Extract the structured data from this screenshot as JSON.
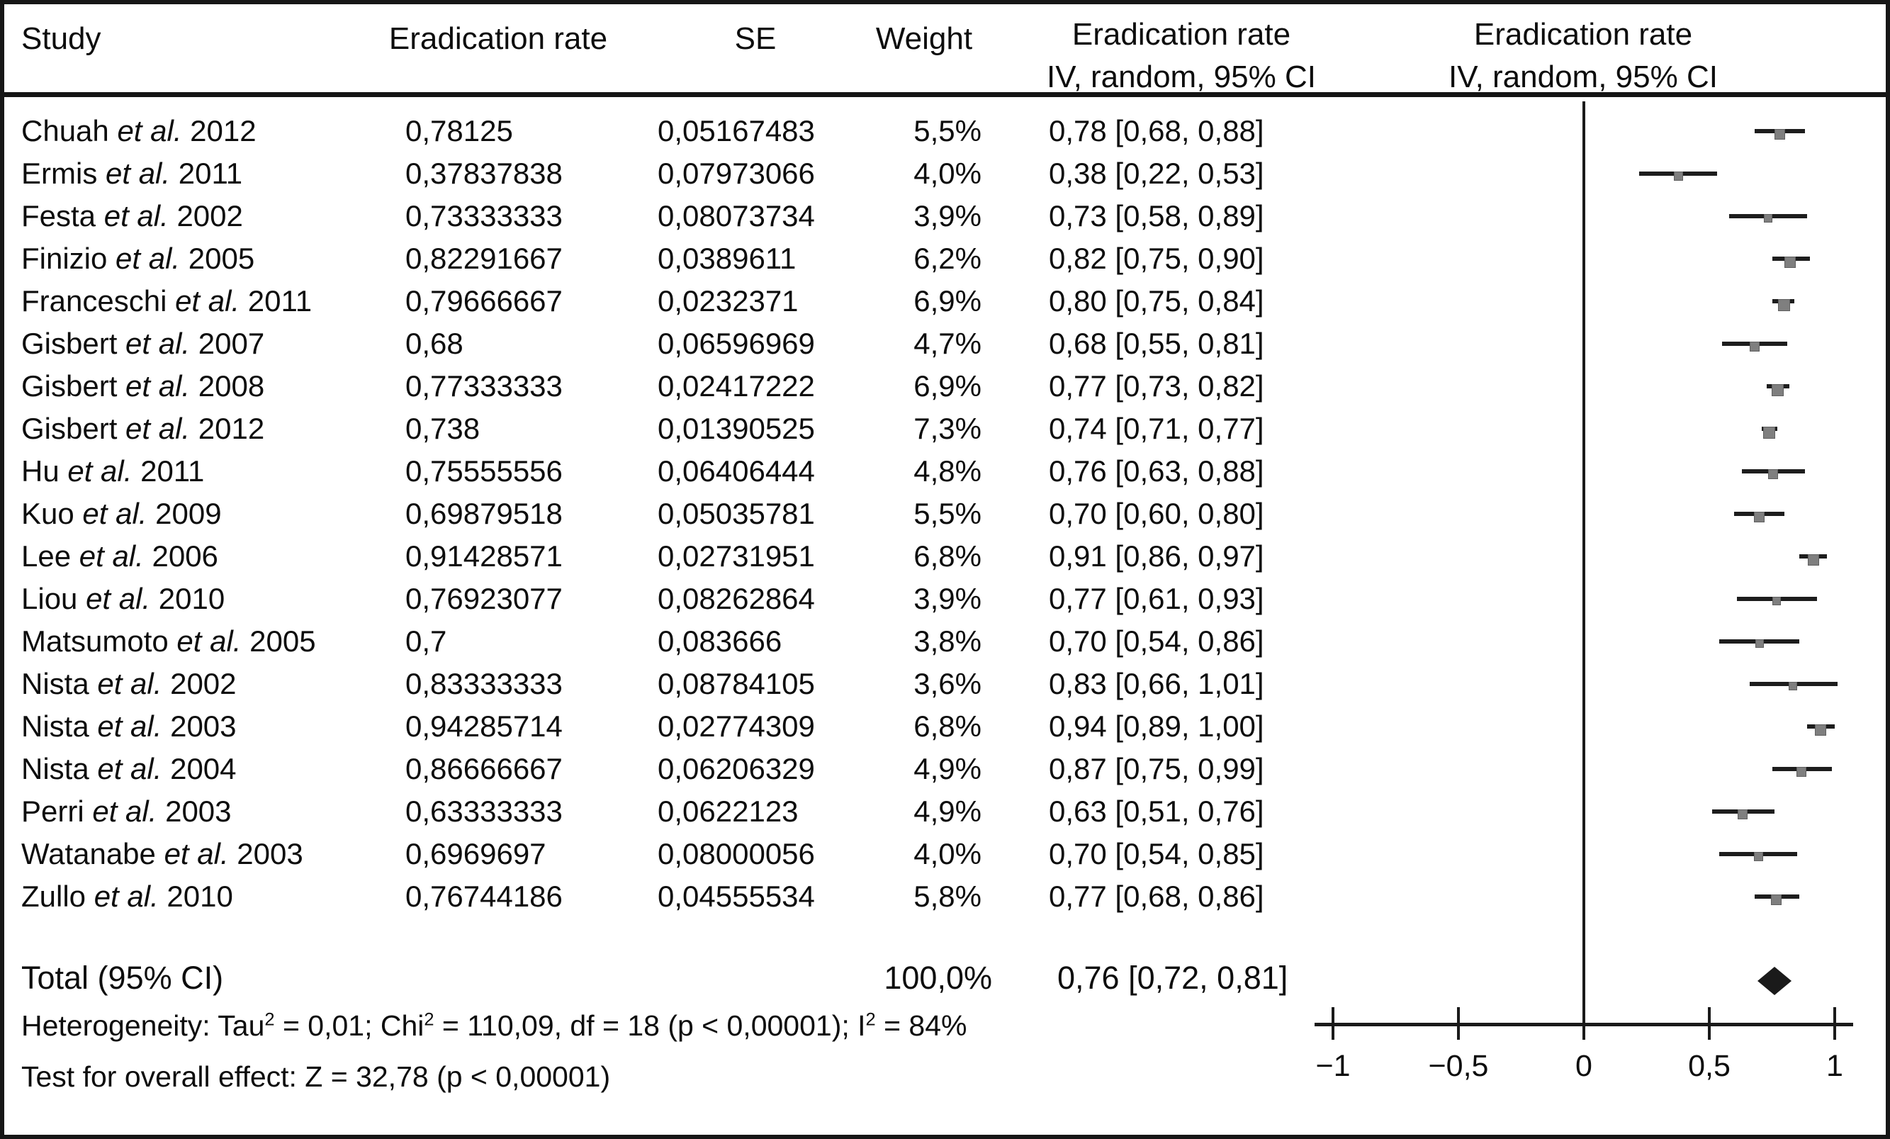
{
  "header": {
    "study": "Study",
    "rate": "Eradication rate",
    "se": "SE",
    "weight": "Weight",
    "ci_rate": "Eradication rate",
    "ci_model": "IV, random, 95% CI",
    "plot_rate": "Eradication rate",
    "plot_model": "IV, random, 95% CI"
  },
  "studies": [
    {
      "author": "Chuah",
      "etal": "et al.",
      "year": "2012",
      "rate": "0,78125",
      "se": "0,05167483",
      "weight": "5,5%",
      "ci": "0,78 [0,68, 0,88]",
      "est": 0.78125,
      "lo": 0.68,
      "hi": 0.88,
      "weight_pct": 5.5
    },
    {
      "author": "Ermis",
      "etal": "et al.",
      "year": "2011",
      "rate": "0,37837838",
      "se": "0,07973066",
      "weight": "4,0%",
      "ci": "0,38 [0,22, 0,53]",
      "est": 0.37837838,
      "lo": 0.22,
      "hi": 0.53,
      "weight_pct": 4.0
    },
    {
      "author": "Festa",
      "etal": "et al.",
      "year": "2002",
      "rate": "0,73333333",
      "se": "0,08073734",
      "weight": "3,9%",
      "ci": "0,73 [0,58, 0,89]",
      "est": 0.73333333,
      "lo": 0.58,
      "hi": 0.89,
      "weight_pct": 3.9
    },
    {
      "author": "Finizio",
      "etal": "et al.",
      "year": "2005",
      "rate": "0,82291667",
      "se": "0,0389611",
      "weight": "6,2%",
      "ci": "0,82 [0,75, 0,90]",
      "est": 0.82291667,
      "lo": 0.75,
      "hi": 0.9,
      "weight_pct": 6.2
    },
    {
      "author": "Franceschi",
      "etal": "et al.",
      "year": "2011",
      "rate": "0,79666667",
      "se": "0,0232371",
      "weight": "6,9%",
      "ci": "0,80 [0,75, 0,84]",
      "est": 0.79666667,
      "lo": 0.75,
      "hi": 0.84,
      "weight_pct": 6.9
    },
    {
      "author": "Gisbert",
      "etal": "et al.",
      "year": "2007",
      "rate": "0,68",
      "se": "0,06596969",
      "weight": "4,7%",
      "ci": "0,68 [0,55, 0,81]",
      "est": 0.68,
      "lo": 0.55,
      "hi": 0.81,
      "weight_pct": 4.7
    },
    {
      "author": "Gisbert",
      "etal": "et al.",
      "year": "2008",
      "rate": "0,77333333",
      "se": "0,02417222",
      "weight": "6,9%",
      "ci": "0,77 [0,73, 0,82]",
      "est": 0.77333333,
      "lo": 0.73,
      "hi": 0.82,
      "weight_pct": 6.9
    },
    {
      "author": "Gisbert",
      "etal": "et al.",
      "year": "2012",
      "rate": "0,738",
      "se": "0,01390525",
      "weight": "7,3%",
      "ci": "0,74 [0,71, 0,77]",
      "est": 0.738,
      "lo": 0.71,
      "hi": 0.77,
      "weight_pct": 7.3
    },
    {
      "author": "Hu",
      "etal": "et al.",
      "year": "2011",
      "rate": "0,75555556",
      "se": "0,06406444",
      "weight": "4,8%",
      "ci": "0,76 [0,63, 0,88]",
      "est": 0.75555556,
      "lo": 0.63,
      "hi": 0.88,
      "weight_pct": 4.8
    },
    {
      "author": "Kuo",
      "etal": "et al.",
      "year": "2009",
      "rate": "0,69879518",
      "se": "0,05035781",
      "weight": "5,5%",
      "ci": "0,70 [0,60, 0,80]",
      "est": 0.69879518,
      "lo": 0.6,
      "hi": 0.8,
      "weight_pct": 5.5
    },
    {
      "author": "Lee",
      "etal": "et al.",
      "year": "2006",
      "rate": "0,91428571",
      "se": "0,02731951",
      "weight": "6,8%",
      "ci": "0,91 [0,86, 0,97]",
      "est": 0.91428571,
      "lo": 0.86,
      "hi": 0.97,
      "weight_pct": 6.8
    },
    {
      "author": "Liou",
      "etal": "et al.",
      "year": "2010",
      "rate": "0,76923077",
      "se": "0,08262864",
      "weight": "3,9%",
      "ci": "0,77 [0,61, 0,93]",
      "est": 0.76923077,
      "lo": 0.61,
      "hi": 0.93,
      "weight_pct": 3.9
    },
    {
      "author": "Matsumoto",
      "etal": "et al.",
      "year": "2005",
      "rate": "0,7",
      "se": "0,083666",
      "weight": "3,8%",
      "ci": "0,70 [0,54, 0,86]",
      "est": 0.7,
      "lo": 0.54,
      "hi": 0.86,
      "weight_pct": 3.8
    },
    {
      "author": "Nista",
      "etal": "et al.",
      "year": "2002",
      "rate": "0,83333333",
      "se": "0,08784105",
      "weight": "3,6%",
      "ci": "0,83 [0,66, 1,01]",
      "est": 0.83333333,
      "lo": 0.66,
      "hi": 1.01,
      "weight_pct": 3.6
    },
    {
      "author": "Nista",
      "etal": "et al.",
      "year": "2003",
      "rate": "0,94285714",
      "se": "0,02774309",
      "weight": "6,8%",
      "ci": "0,94 [0,89, 1,00]",
      "est": 0.94285714,
      "lo": 0.89,
      "hi": 1.0,
      "weight_pct": 6.8
    },
    {
      "author": "Nista",
      "etal": "et al.",
      "year": "2004",
      "rate": "0,86666667",
      "se": "0,06206329",
      "weight": "4,9%",
      "ci": "0,87 [0,75, 0,99]",
      "est": 0.86666667,
      "lo": 0.75,
      "hi": 0.99,
      "weight_pct": 4.9
    },
    {
      "author": "Perri",
      "etal": "et al.",
      "year": "2003",
      "rate": "0,63333333",
      "se": "0,0622123",
      "weight": "4,9%",
      "ci": "0,63 [0,51, 0,76]",
      "est": 0.63333333,
      "lo": 0.51,
      "hi": 0.76,
      "weight_pct": 4.9
    },
    {
      "author": "Watanabe",
      "etal": "et al.",
      "year": "2003",
      "rate": "0,6969697",
      "se": "0,08000056",
      "weight": "4,0%",
      "ci": "0,70 [0,54, 0,85]",
      "est": 0.6969697,
      "lo": 0.54,
      "hi": 0.85,
      "weight_pct": 4.0
    },
    {
      "author": "Zullo",
      "etal": "et al.",
      "year": "2010",
      "rate": "0,76744186",
      "se": "0,04555534",
      "weight": "5,8%",
      "ci": "0,77 [0,68, 0,86]",
      "est": 0.76744186,
      "lo": 0.68,
      "hi": 0.86,
      "weight_pct": 5.8
    }
  ],
  "total": {
    "label": "Total (95% CI)",
    "weight": "100,0%",
    "ci": "0,76 [0,72, 0,81]",
    "est": 0.76,
    "lo": 0.72,
    "hi": 0.81
  },
  "footer": {
    "heterogeneity": "Heterogeneity: Tau² = 0,01; Chi² = 110,09, df = 18 (p < 0,00001); I² = 84%",
    "overall_effect": "Test for overall effect: Z = 32,78 (p < 0,00001)"
  },
  "axis": {
    "min": -1,
    "max": 1,
    "ticks": [
      {
        "value": -1,
        "label": "−1"
      },
      {
        "value": -0.5,
        "label": "−0,5"
      },
      {
        "value": 0,
        "label": "0"
      },
      {
        "value": 0.5,
        "label": "0,5"
      },
      {
        "value": 1,
        "label": "1"
      }
    ]
  },
  "colors": {
    "text": "#0d0d0d",
    "border": "#161616",
    "ci_line": "#1d1d1d",
    "marker": "#7f7f7f",
    "marker_border": "#5f5f5f",
    "diamond": "#1a1a1a",
    "axis": "#1a1a1a"
  },
  "chart_data": {
    "type": "scatter",
    "subtype": "forest_plot",
    "title": "Eradication rate — IV, random, 95% CI",
    "xlabel": "Eradication rate",
    "xlim": [
      -1,
      1
    ],
    "x_ticks": [
      -1,
      -0.5,
      0,
      0.5,
      1
    ],
    "x_tick_labels": [
      "−1",
      "−0,5",
      "0",
      "0,5",
      "1"
    ],
    "zero_line": 0,
    "grid": false,
    "legend_position": "none",
    "marker_style": "gray square sized by weight, black CI whisker",
    "summary_marker": "black diamond",
    "categories": [
      "Chuah et al. 2012",
      "Ermis et al. 2011",
      "Festa et al. 2002",
      "Finizio et al. 2005",
      "Franceschi et al. 2011",
      "Gisbert et al. 2007",
      "Gisbert et al. 2008",
      "Gisbert et al. 2012",
      "Hu et al. 2011",
      "Kuo et al. 2009",
      "Lee et al. 2006",
      "Liou et al. 2010",
      "Matsumoto et al. 2005",
      "Nista et al. 2002",
      "Nista et al. 2003",
      "Nista et al. 2004",
      "Perri et al. 2003",
      "Watanabe et al. 2003",
      "Zullo et al. 2010"
    ],
    "series": [
      {
        "name": "estimate",
        "values": [
          0.78125,
          0.37837838,
          0.73333333,
          0.82291667,
          0.79666667,
          0.68,
          0.77333333,
          0.738,
          0.75555556,
          0.69879518,
          0.91428571,
          0.76923077,
          0.7,
          0.83333333,
          0.94285714,
          0.86666667,
          0.63333333,
          0.6969697,
          0.76744186
        ]
      },
      {
        "name": "se",
        "values": [
          0.05167483,
          0.07973066,
          0.08073734,
          0.0389611,
          0.0232371,
          0.06596969,
          0.02417222,
          0.01390525,
          0.06406444,
          0.05035781,
          0.02731951,
          0.08262864,
          0.083666,
          0.08784105,
          0.02774309,
          0.06206329,
          0.0622123,
          0.08000056,
          0.04555534
        ]
      },
      {
        "name": "ci_low",
        "values": [
          0.68,
          0.22,
          0.58,
          0.75,
          0.75,
          0.55,
          0.73,
          0.71,
          0.63,
          0.6,
          0.86,
          0.61,
          0.54,
          0.66,
          0.89,
          0.75,
          0.51,
          0.54,
          0.68
        ]
      },
      {
        "name": "ci_high",
        "values": [
          0.88,
          0.53,
          0.89,
          0.9,
          0.84,
          0.81,
          0.82,
          0.77,
          0.88,
          0.8,
          0.97,
          0.93,
          0.86,
          1.01,
          1.0,
          0.99,
          0.76,
          0.85,
          0.86
        ]
      },
      {
        "name": "weight_pct",
        "values": [
          5.5,
          4.0,
          3.9,
          6.2,
          6.9,
          4.7,
          6.9,
          7.3,
          4.8,
          5.5,
          6.8,
          3.9,
          3.8,
          3.6,
          6.8,
          4.9,
          4.9,
          4.0,
          5.8
        ]
      }
    ],
    "summary": {
      "label": "Total (95% CI)",
      "estimate": 0.76,
      "ci_low": 0.72,
      "ci_high": 0.81,
      "weight_pct": 100.0
    },
    "annotations": [
      "Heterogeneity: Tau² = 0,01; Chi² = 110,09, df = 18 (p < 0,00001); I² = 84%",
      "Test for overall effect: Z = 32,78 (p < 0,00001)"
    ]
  }
}
